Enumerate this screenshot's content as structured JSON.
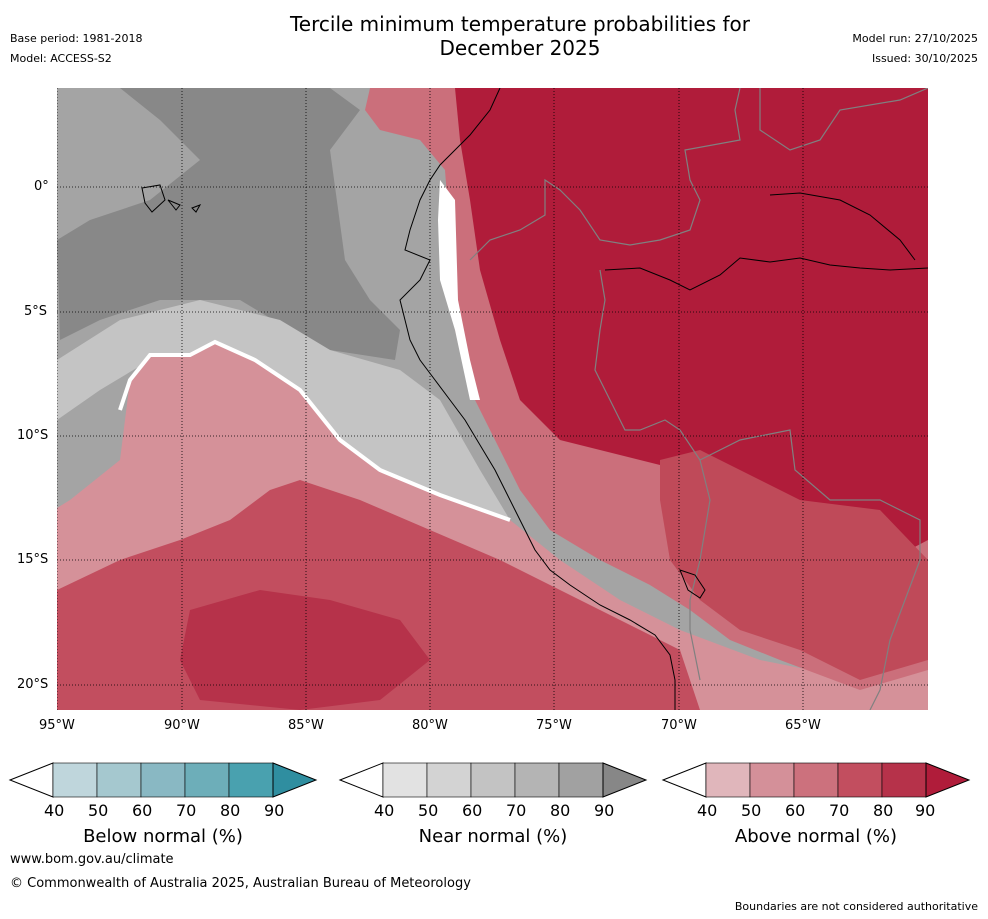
{
  "header": {
    "title_line1": "Tercile minimum temperature probabilities for",
    "title_line2": "December 2025",
    "base_period": "Base period: 1981-2018",
    "model": "Model: ACCESS-S2",
    "model_run": "Model run: 27/10/2025",
    "issued": "Issued: 30/10/2025"
  },
  "map": {
    "lat_labels": [
      "0°",
      "5°S",
      "10°S",
      "15°S",
      "20°S"
    ],
    "lon_labels": [
      "95°W",
      "90°W",
      "85°W",
      "80°W",
      "75°W",
      "70°W",
      "65°W"
    ],
    "colors": {
      "near_light": "#e2e2e2",
      "near_mid": "#c4c4c4",
      "near_dark": "#a4a4a4",
      "near_darkest": "#888888",
      "above_40": "#e0b6bb",
      "above_50": "#d59199",
      "above_60": "#cb6f7b",
      "above_70": "#bf4a59",
      "above_80": "#b02a42",
      "above_90": "#b01c3a"
    }
  },
  "colorbars": [
    {
      "name": "below",
      "ticks": [
        "40",
        "50",
        "60",
        "70",
        "80",
        "90"
      ],
      "label": "Below normal (%)",
      "colors": [
        "#bfd6dc",
        "#a5c8cf",
        "#89b8c3",
        "#6daeb9",
        "#49a1af",
        "#2f8ea0"
      ]
    },
    {
      "name": "near",
      "ticks": [
        "40",
        "50",
        "60",
        "70",
        "80",
        "90"
      ],
      "label": "Near normal (%)",
      "colors": [
        "#e2e2e2",
        "#d3d3d3",
        "#c3c3c3",
        "#b4b4b4",
        "#a1a1a1",
        "#878787"
      ]
    },
    {
      "name": "above",
      "ticks": [
        "40",
        "50",
        "60",
        "70",
        "80",
        "90"
      ],
      "label": "Above normal (%)",
      "colors": [
        "#e0b6bb",
        "#d49099",
        "#cc717d",
        "#c24e5f",
        "#b6324a",
        "#b01c3a"
      ]
    }
  ],
  "footer": {
    "url": "www.bom.gov.au/climate",
    "copyright": "© Commonwealth of Australia 2025, Australian Bureau of Meteorology",
    "disclaimer": "Boundaries are not considered authoritative"
  }
}
